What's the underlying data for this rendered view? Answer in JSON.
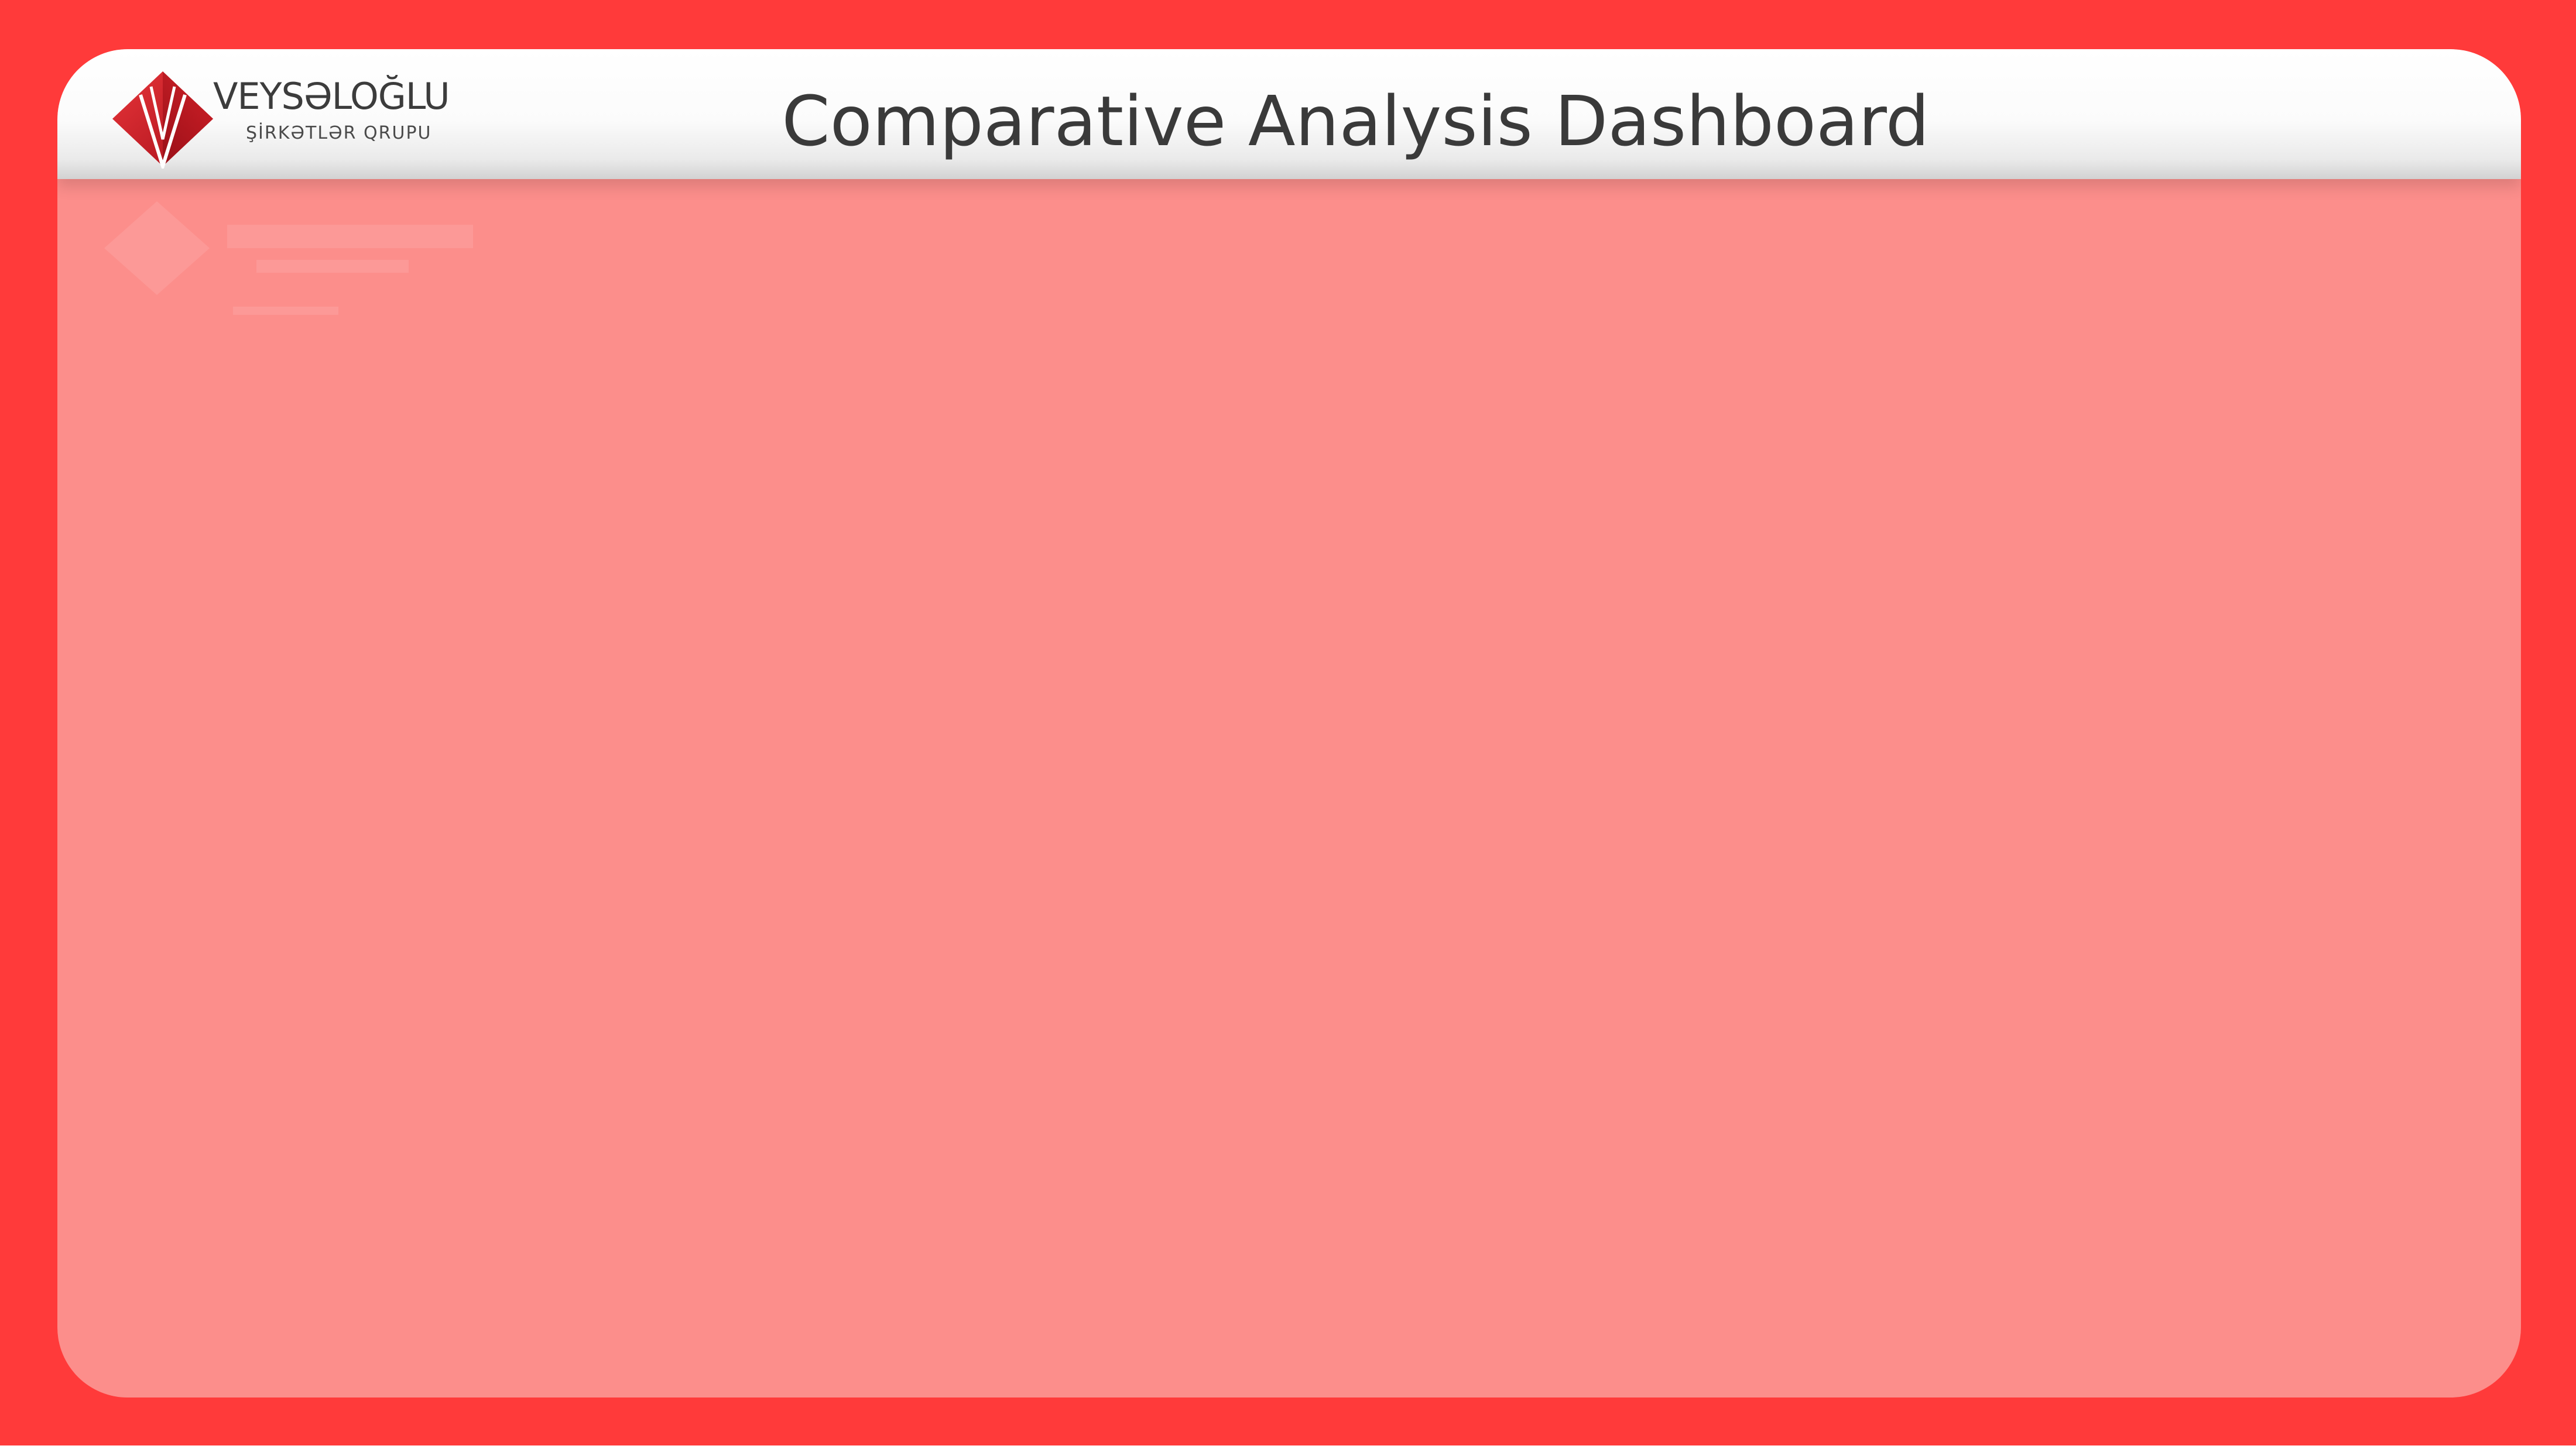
{
  "header": {
    "title": "Comparative Analysis Dashboard"
  },
  "logo": {
    "name": "VEYSƏLOĞLU",
    "subtitle": "ŞİRKƏTLƏR QRUPU",
    "icon": "veyseloglu-diamond-logo-icon"
  },
  "colors": {
    "frame": "#ff3a3a",
    "panel": "#fc8e8b",
    "header": "#ffffff",
    "title_text": "#3a3a3a",
    "logo_red": "#c8141e"
  }
}
